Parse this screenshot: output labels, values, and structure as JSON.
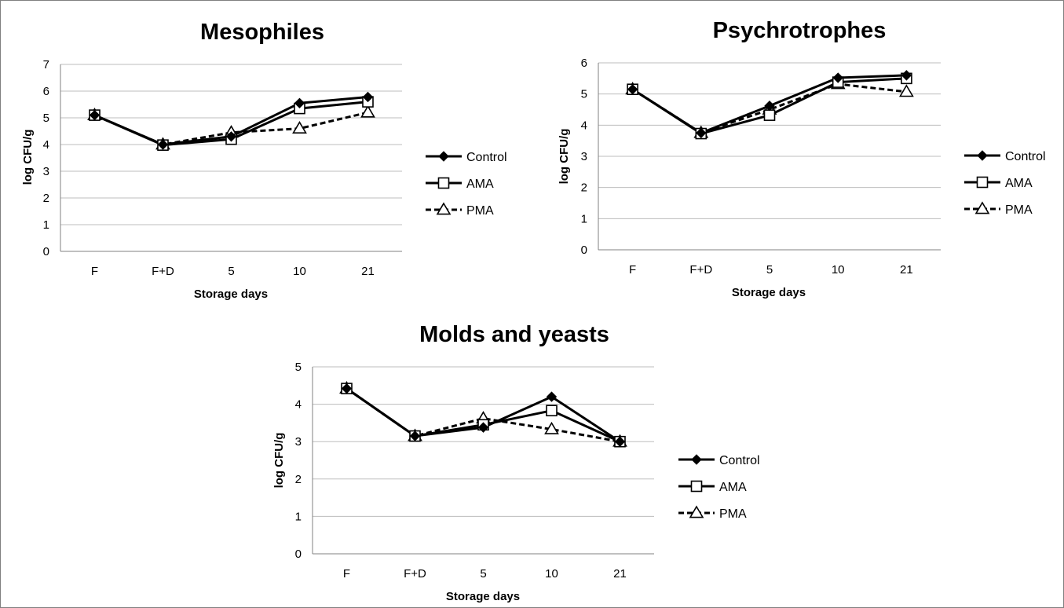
{
  "chart_data": [
    {
      "type": "line",
      "title": "Mesophiles",
      "xlabel": "Storage days",
      "ylabel": "log CFU/g",
      "categories": [
        "F",
        "F+D",
        "5",
        "10",
        "21"
      ],
      "ylim": [
        0,
        7
      ],
      "yticks": [
        "0",
        "1",
        "2",
        "3",
        "4",
        "5",
        "6",
        "7"
      ],
      "grid": true,
      "legend_position": "right",
      "series": [
        {
          "name": "Control",
          "values": [
            5.1,
            4.0,
            4.3,
            5.55,
            5.78
          ]
        },
        {
          "name": "AMA",
          "values": [
            5.1,
            3.98,
            4.2,
            5.35,
            5.6
          ]
        },
        {
          "name": "PMA",
          "values": [
            5.1,
            4.0,
            4.45,
            4.6,
            5.2
          ]
        }
      ]
    },
    {
      "type": "line",
      "title": "Psychrotrophes",
      "xlabel": "Storage days",
      "ylabel": "log CFU/g",
      "categories": [
        "F",
        "F+D",
        "5",
        "10",
        "21"
      ],
      "ylim": [
        0,
        6
      ],
      "yticks": [
        "0",
        "1",
        "2",
        "3",
        "4",
        "5",
        "6"
      ],
      "grid": true,
      "legend_position": "right",
      "series": [
        {
          "name": "Control",
          "values": [
            5.15,
            3.75,
            4.62,
            5.52,
            5.6
          ]
        },
        {
          "name": "AMA",
          "values": [
            5.15,
            3.73,
            4.32,
            5.38,
            5.5
          ]
        },
        {
          "name": "PMA",
          "values": [
            5.15,
            3.75,
            4.5,
            5.32,
            5.07
          ]
        }
      ]
    },
    {
      "type": "line",
      "title": "Molds and yeasts",
      "xlabel": "Storage days",
      "ylabel": "log CFU/g",
      "categories": [
        "F",
        "F+D",
        "5",
        "10",
        "21"
      ],
      "ylim": [
        0,
        5
      ],
      "yticks": [
        "0",
        "1",
        "2",
        "3",
        "4",
        "5"
      ],
      "grid": true,
      "legend_position": "right",
      "series": [
        {
          "name": "Control",
          "values": [
            4.42,
            3.15,
            3.38,
            4.2,
            3.0
          ]
        },
        {
          "name": "AMA",
          "values": [
            4.42,
            3.15,
            3.45,
            3.83,
            3.0
          ]
        },
        {
          "name": "PMA",
          "values": [
            4.42,
            3.15,
            3.62,
            3.33,
            3.0
          ]
        }
      ]
    }
  ],
  "series_styles": {
    "Control": {
      "color": "#000000",
      "dash": "solid",
      "marker": "diamond-filled"
    },
    "AMA": {
      "color": "#000000",
      "dash": "solid",
      "marker": "square-open"
    },
    "PMA": {
      "color": "#000000",
      "dash": "dashed",
      "marker": "triangle-open"
    }
  }
}
